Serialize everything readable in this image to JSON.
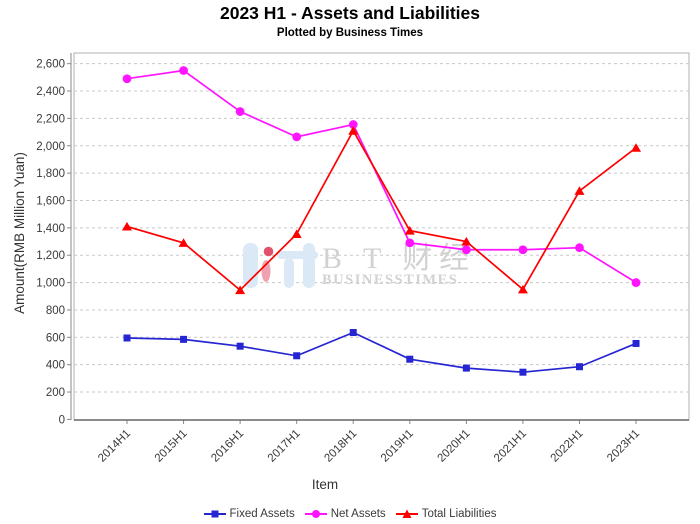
{
  "title": "2023 H1 - Assets and Liabilities",
  "subtitle": "Plotted by Business Times",
  "watermark": {
    "text_cn": "B T 财经",
    "text_en": "BUSINESSTIMES",
    "logo_blue": "#dbe8f5",
    "logo_red_dot": "#e3506b",
    "logo_red_ellipse": "#efa3b0",
    "text_color": "#d2d2d2"
  },
  "chart_data": {
    "type": "line",
    "title": "2023 H1 - Assets and Liabilities",
    "subtitle": "Plotted by Business Times",
    "xlabel": "Item",
    "ylabel": "Amount(RMB Million Yuan)",
    "ylim": [
      0,
      2600
    ],
    "ytick_step": 200,
    "grid": "horizontal-dashed",
    "grid_color": "#c8c8c8",
    "legend_position": "bottom",
    "x_tick_rotation": -45,
    "categories": [
      "2014H1",
      "2015H1",
      "2016H1",
      "2017H1",
      "2018H1",
      "2019H1",
      "2020H1",
      "2021H1",
      "2022H1",
      "2023H1"
    ],
    "series": [
      {
        "name": "Fixed Assets",
        "marker": "square",
        "color": "#2525d2",
        "values": [
          595,
          585,
          535,
          465,
          635,
          440,
          375,
          345,
          385,
          555
        ]
      },
      {
        "name": "Net Assets",
        "marker": "circle",
        "color": "#ff14ff",
        "values": [
          2490,
          2550,
          2250,
          2065,
          2155,
          1290,
          1240,
          1240,
          1255,
          1000
        ]
      },
      {
        "name": "Total Liabilities",
        "marker": "triangle",
        "color": "#fe0000",
        "values": [
          1410,
          1290,
          945,
          1355,
          2110,
          1380,
          1300,
          950,
          1670,
          1985
        ]
      }
    ]
  }
}
